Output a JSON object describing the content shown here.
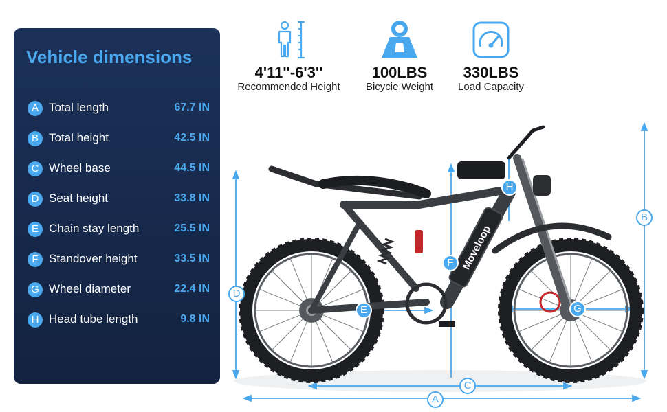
{
  "panel": {
    "title": "Vehicle dimensions",
    "rows": [
      {
        "letter": "A",
        "label": "Total length",
        "value": "67.7 IN"
      },
      {
        "letter": "B",
        "label": "Total height",
        "value": "42.5 IN"
      },
      {
        "letter": "C",
        "label": "Wheel base",
        "value": "44.5 IN"
      },
      {
        "letter": "D",
        "label": "Seat height",
        "value": "33.8 IN"
      },
      {
        "letter": "E",
        "label": "Chain stay length",
        "value": "25.5 IN"
      },
      {
        "letter": "F",
        "label": "Standover height",
        "value": "33.5 IN"
      },
      {
        "letter": "G",
        "label": "Wheel diameter",
        "value": "22.4 IN"
      },
      {
        "letter": "H",
        "label": "Head tube length",
        "value": "9.8 IN"
      }
    ]
  },
  "specs": [
    {
      "icon": "person-height-icon",
      "value": "4'11''-6'3''",
      "label": "Recommended Height"
    },
    {
      "icon": "weight-icon",
      "value": "100LBS",
      "label": "Bicycie Weight"
    },
    {
      "icon": "gauge-icon",
      "value": "330LBS",
      "label": "Load Capacity"
    }
  ],
  "bike": {
    "brand": "Moveloop",
    "markers": [
      "A",
      "B",
      "C",
      "D",
      "E",
      "F",
      "G",
      "H"
    ]
  },
  "colors": {
    "accent": "#4aa8ee",
    "panel": "#1a2e55",
    "frame": "#3a3d42"
  }
}
